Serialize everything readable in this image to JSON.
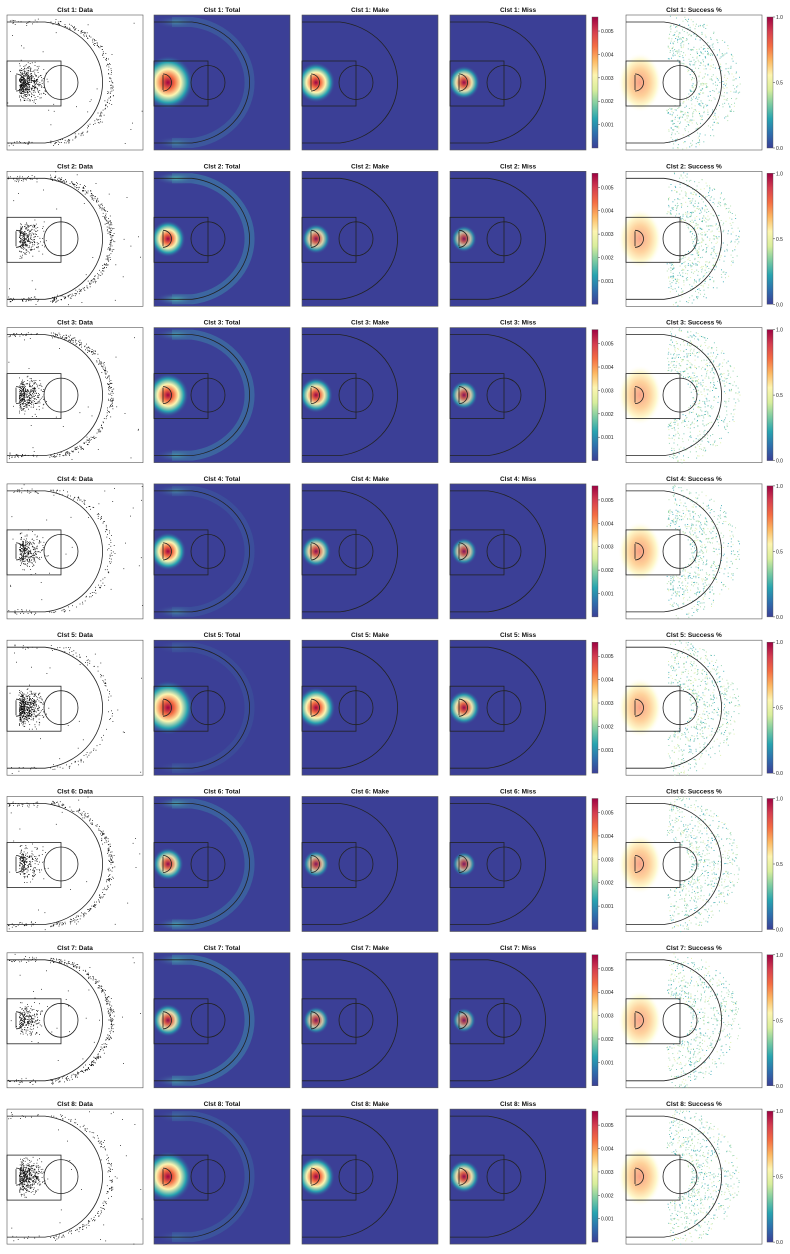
{
  "figure": {
    "column_titles": [
      "Data",
      "Total",
      "Make",
      "Miss",
      "Success %"
    ],
    "cluster_prefix": "Clst"
  },
  "colors": {
    "heatmap_background": "#3b3f96",
    "court_lines": "#222222",
    "scatter_points": "#000000",
    "colormap": [
      "#3b3f96",
      "#2e6fad",
      "#27a3b0",
      "#7ccba2",
      "#d8ee9c",
      "#fdf5b0",
      "#fdb863",
      "#f46d43",
      "#d53e4f",
      "#9e0142"
    ]
  },
  "colorbars": {
    "density": {
      "ticks": [
        "0.001",
        "0.002",
        "0.003",
        "0.004",
        "0.005"
      ],
      "range": [
        0,
        0.0056
      ]
    },
    "success": {
      "ticks": [
        "0.0",
        "0.5",
        "1.0"
      ],
      "range": [
        0,
        1
      ]
    }
  },
  "chart_data": [
    {
      "type": "scatter",
      "title": "Clst 1: Data",
      "cluster": 1,
      "rim_density": 0.0055,
      "three_point_density": 0.0012,
      "corner_density": 0.001
    },
    {
      "type": "heatmap",
      "title": "Clst 1: Total",
      "cluster": 1,
      "rim_density": 0.0055,
      "three_point_density": 0.0012,
      "corner_density": 0.001
    },
    {
      "type": "heatmap",
      "title": "Clst 1: Make",
      "cluster": 1,
      "rim_density": 0.0035
    },
    {
      "type": "heatmap",
      "title": "Clst 1: Miss",
      "cluster": 1,
      "rim_density": 0.0025
    },
    {
      "type": "heatmap",
      "title": "Clst 1: Success %",
      "cluster": 1,
      "rim_success": 0.65,
      "outer_success": 0.35
    },
    {
      "type": "scatter",
      "title": "Clst 2: Data",
      "cluster": 2,
      "rim_density": 0.003,
      "three_point_density": 0.002,
      "corner_density": 0.0018
    },
    {
      "type": "heatmap",
      "title": "Clst 2: Total",
      "cluster": 2,
      "rim_density": 0.003,
      "three_point_density": 0.002,
      "corner_density": 0.0018
    },
    {
      "type": "heatmap",
      "title": "Clst 2: Make",
      "cluster": 2,
      "rim_density": 0.002
    },
    {
      "type": "heatmap",
      "title": "Clst 2: Miss",
      "cluster": 2,
      "rim_density": 0.0015
    },
    {
      "type": "heatmap",
      "title": "Clst 2: Success %",
      "cluster": 2,
      "rim_success": 0.62,
      "outer_success": 0.37
    },
    {
      "type": "scatter",
      "title": "Clst 3: Data",
      "cluster": 3,
      "rim_density": 0.004,
      "three_point_density": 0.0018,
      "corner_density": 0.0012
    },
    {
      "type": "heatmap",
      "title": "Clst 3: Total",
      "cluster": 3,
      "rim_density": 0.004,
      "three_point_density": 0.0018,
      "corner_density": 0.0012
    },
    {
      "type": "heatmap",
      "title": "Clst 3: Make",
      "cluster": 3,
      "rim_density": 0.0028
    },
    {
      "type": "heatmap",
      "title": "Clst 3: Miss",
      "cluster": 3,
      "rim_density": 0.0018
    },
    {
      "type": "heatmap",
      "title": "Clst 3: Success %",
      "cluster": 3,
      "rim_success": 0.63,
      "outer_success": 0.38
    },
    {
      "type": "scatter",
      "title": "Clst 4: Data",
      "cluster": 4,
      "rim_density": 0.0032,
      "three_point_density": 0.0008,
      "corner_density": 0.001
    },
    {
      "type": "heatmap",
      "title": "Clst 4: Total",
      "cluster": 4,
      "rim_density": 0.0032,
      "three_point_density": 0.0008,
      "corner_density": 0.001
    },
    {
      "type": "heatmap",
      "title": "Clst 4: Make",
      "cluster": 4,
      "rim_density": 0.0022
    },
    {
      "type": "heatmap",
      "title": "Clst 4: Miss",
      "cluster": 4,
      "rim_density": 0.0016
    },
    {
      "type": "heatmap",
      "title": "Clst 4: Success %",
      "cluster": 4,
      "rim_success": 0.66,
      "outer_success": 0.34
    },
    {
      "type": "scatter",
      "title": "Clst 5: Data",
      "cluster": 5,
      "rim_density": 0.0056,
      "three_point_density": 0.0006,
      "corner_density": 0.0004
    },
    {
      "type": "heatmap",
      "title": "Clst 5: Total",
      "cluster": 5,
      "rim_density": 0.0056,
      "three_point_density": 0.0006,
      "corner_density": 0.0004
    },
    {
      "type": "heatmap",
      "title": "Clst 5: Make",
      "cluster": 5,
      "rim_density": 0.0036
    },
    {
      "type": "heatmap",
      "title": "Clst 5: Miss",
      "cluster": 5,
      "rim_density": 0.0026
    },
    {
      "type": "heatmap",
      "title": "Clst 5: Success %",
      "cluster": 5,
      "rim_success": 0.64,
      "outer_success": 0.33
    },
    {
      "type": "scatter",
      "title": "Clst 6: Data",
      "cluster": 6,
      "rim_density": 0.0024,
      "three_point_density": 0.0016,
      "corner_density": 0.0014
    },
    {
      "type": "heatmap",
      "title": "Clst 6: Total",
      "cluster": 6,
      "rim_density": 0.0024,
      "three_point_density": 0.0016,
      "corner_density": 0.0014
    },
    {
      "type": "heatmap",
      "title": "Clst 6: Make",
      "cluster": 6,
      "rim_density": 0.0016
    },
    {
      "type": "heatmap",
      "title": "Clst 6: Miss",
      "cluster": 6,
      "rim_density": 0.0012
    },
    {
      "type": "heatmap",
      "title": "Clst 6: Success %",
      "cluster": 6,
      "rim_success": 0.63,
      "outer_success": 0.36
    },
    {
      "type": "scatter",
      "title": "Clst 7: Data",
      "cluster": 7,
      "rim_density": 0.0024,
      "three_point_density": 0.002,
      "corner_density": 0.0012
    },
    {
      "type": "heatmap",
      "title": "Clst 7: Total",
      "cluster": 7,
      "rim_density": 0.0024,
      "three_point_density": 0.002,
      "corner_density": 0.0012
    },
    {
      "type": "heatmap",
      "title": "Clst 7: Make",
      "cluster": 7,
      "rim_density": 0.0016
    },
    {
      "type": "heatmap",
      "title": "Clst 7: Miss",
      "cluster": 7,
      "rim_density": 0.0012
    },
    {
      "type": "heatmap",
      "title": "Clst 7: Success %",
      "cluster": 7,
      "rim_success": 0.62,
      "outer_success": 0.37
    },
    {
      "type": "scatter",
      "title": "Clst 8: Data",
      "cluster": 8,
      "rim_density": 0.005,
      "three_point_density": 0.001,
      "corner_density": 0.0005
    },
    {
      "type": "heatmap",
      "title": "Clst 8: Total",
      "cluster": 8,
      "rim_density": 0.005,
      "three_point_density": 0.001,
      "corner_density": 0.0005
    },
    {
      "type": "heatmap",
      "title": "Clst 8: Make",
      "cluster": 8,
      "rim_density": 0.0034
    },
    {
      "type": "heatmap",
      "title": "Clst 8: Miss",
      "cluster": 8,
      "rim_density": 0.0024
    },
    {
      "type": "heatmap",
      "title": "Clst 8: Success %",
      "cluster": 8,
      "rim_success": 0.65,
      "outer_success": 0.34
    }
  ]
}
